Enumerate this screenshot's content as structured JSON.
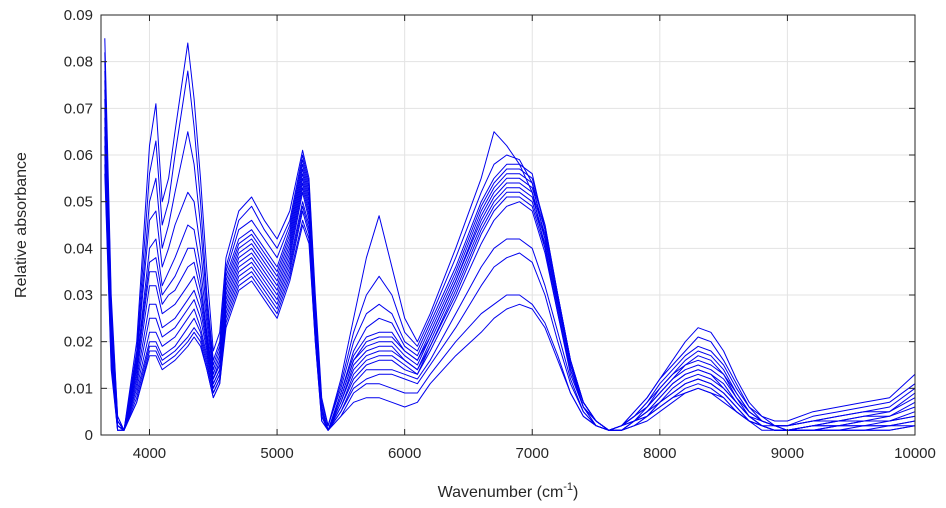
{
  "chart_data": {
    "type": "line",
    "title": "",
    "xlabel": "Wavenumber (cm",
    "xlabel_sup": "-1",
    "xlabel_tail": ")",
    "ylabel": "Relative absorbance",
    "xlim": [
      3620,
      10000
    ],
    "ylim": [
      0,
      0.09
    ],
    "x_ticks": [
      4000,
      5000,
      6000,
      7000,
      8000,
      9000,
      10000
    ],
    "y_ticks": [
      0,
      0.01,
      0.02,
      0.03,
      0.04,
      0.05,
      0.06,
      0.07,
      0.08,
      0.09
    ],
    "x_tick_labels": [
      "4000",
      "5000",
      "6000",
      "7000",
      "8000",
      "9000",
      "10000"
    ],
    "y_tick_labels": [
      "0",
      "0.01",
      "0.02",
      "0.03",
      "0.04",
      "0.05",
      "0.06",
      "0.07",
      "0.08",
      "0.09"
    ],
    "grid": true,
    "line_color": "#0000ee",
    "x": [
      3650,
      3700,
      3750,
      3800,
      3900,
      4000,
      4050,
      4100,
      4150,
      4200,
      4300,
      4350,
      4400,
      4450,
      4500,
      4550,
      4600,
      4700,
      4800,
      4900,
      5000,
      5100,
      5200,
      5250,
      5300,
      5350,
      5400,
      5500,
      5600,
      5700,
      5800,
      5900,
      6000,
      6100,
      6200,
      6400,
      6600,
      6700,
      6800,
      6900,
      7000,
      7100,
      7200,
      7300,
      7400,
      7500,
      7600,
      7700,
      7800,
      7900,
      8000,
      8100,
      8200,
      8300,
      8400,
      8500,
      8600,
      8700,
      8800,
      8900,
      9000,
      9200,
      9400,
      9600,
      9800,
      10000
    ],
    "series": [
      {
        "values": [
          0.085,
          0.03,
          0.004,
          0.001,
          0.02,
          0.062,
          0.071,
          0.05,
          0.055,
          0.065,
          0.084,
          0.072,
          0.055,
          0.035,
          0.018,
          0.022,
          0.038,
          0.048,
          0.051,
          0.046,
          0.042,
          0.048,
          0.061,
          0.055,
          0.03,
          0.008,
          0.002,
          0.012,
          0.025,
          0.038,
          0.047,
          0.036,
          0.025,
          0.02,
          0.026,
          0.04,
          0.055,
          0.065,
          0.062,
          0.058,
          0.052,
          0.04,
          0.028,
          0.015,
          0.007,
          0.003,
          0.001,
          0.002,
          0.005,
          0.008,
          0.012,
          0.016,
          0.02,
          0.023,
          0.022,
          0.018,
          0.012,
          0.007,
          0.004,
          0.003,
          0.003,
          0.005,
          0.006,
          0.007,
          0.008,
          0.013
        ]
      },
      {
        "values": [
          0.082,
          0.028,
          0.004,
          0.001,
          0.018,
          0.056,
          0.063,
          0.045,
          0.05,
          0.06,
          0.078,
          0.066,
          0.05,
          0.03,
          0.016,
          0.02,
          0.036,
          0.046,
          0.049,
          0.044,
          0.04,
          0.046,
          0.06,
          0.054,
          0.029,
          0.007,
          0.002,
          0.011,
          0.022,
          0.03,
          0.034,
          0.03,
          0.022,
          0.019,
          0.025,
          0.038,
          0.052,
          0.058,
          0.06,
          0.059,
          0.054,
          0.042,
          0.029,
          0.015,
          0.007,
          0.003,
          0.001,
          0.002,
          0.005,
          0.008,
          0.012,
          0.015,
          0.018,
          0.021,
          0.02,
          0.016,
          0.011,
          0.006,
          0.004,
          0.002,
          0.002,
          0.004,
          0.005,
          0.006,
          0.007,
          0.011
        ]
      },
      {
        "values": [
          0.08,
          0.026,
          0.003,
          0.001,
          0.017,
          0.05,
          0.055,
          0.04,
          0.045,
          0.052,
          0.065,
          0.058,
          0.045,
          0.028,
          0.015,
          0.019,
          0.035,
          0.044,
          0.046,
          0.042,
          0.038,
          0.045,
          0.059,
          0.053,
          0.028,
          0.007,
          0.002,
          0.01,
          0.02,
          0.026,
          0.028,
          0.026,
          0.02,
          0.018,
          0.024,
          0.036,
          0.05,
          0.055,
          0.058,
          0.058,
          0.056,
          0.044,
          0.03,
          0.016,
          0.007,
          0.003,
          0.001,
          0.002,
          0.004,
          0.007,
          0.011,
          0.014,
          0.017,
          0.019,
          0.018,
          0.015,
          0.01,
          0.006,
          0.003,
          0.002,
          0.002,
          0.003,
          0.004,
          0.005,
          0.006,
          0.01
        ]
      },
      {
        "values": [
          0.078,
          0.025,
          0.003,
          0.001,
          0.016,
          0.046,
          0.048,
          0.036,
          0.04,
          0.045,
          0.052,
          0.05,
          0.04,
          0.026,
          0.014,
          0.018,
          0.034,
          0.042,
          0.044,
          0.04,
          0.036,
          0.044,
          0.058,
          0.052,
          0.027,
          0.006,
          0.001,
          0.009,
          0.018,
          0.023,
          0.025,
          0.024,
          0.019,
          0.017,
          0.023,
          0.035,
          0.049,
          0.054,
          0.057,
          0.057,
          0.055,
          0.045,
          0.03,
          0.016,
          0.007,
          0.003,
          0.001,
          0.002,
          0.004,
          0.007,
          0.01,
          0.013,
          0.016,
          0.018,
          0.017,
          0.014,
          0.009,
          0.005,
          0.003,
          0.002,
          0.002,
          0.003,
          0.004,
          0.005,
          0.005,
          0.009
        ]
      },
      {
        "values": [
          0.076,
          0.024,
          0.003,
          0.001,
          0.015,
          0.04,
          0.042,
          0.032,
          0.035,
          0.038,
          0.045,
          0.044,
          0.036,
          0.024,
          0.013,
          0.017,
          0.033,
          0.041,
          0.043,
          0.039,
          0.035,
          0.043,
          0.057,
          0.051,
          0.026,
          0.006,
          0.001,
          0.009,
          0.017,
          0.021,
          0.022,
          0.022,
          0.018,
          0.016,
          0.022,
          0.034,
          0.048,
          0.053,
          0.056,
          0.056,
          0.054,
          0.045,
          0.03,
          0.016,
          0.007,
          0.003,
          0.001,
          0.002,
          0.004,
          0.006,
          0.01,
          0.013,
          0.015,
          0.017,
          0.016,
          0.013,
          0.009,
          0.005,
          0.003,
          0.002,
          0.002,
          0.003,
          0.003,
          0.004,
          0.005,
          0.008
        ]
      },
      {
        "values": [
          0.074,
          0.023,
          0.003,
          0.001,
          0.015,
          0.037,
          0.038,
          0.03,
          0.032,
          0.034,
          0.04,
          0.04,
          0.033,
          0.022,
          0.012,
          0.016,
          0.032,
          0.04,
          0.042,
          0.038,
          0.034,
          0.042,
          0.056,
          0.05,
          0.026,
          0.006,
          0.001,
          0.008,
          0.016,
          0.02,
          0.021,
          0.021,
          0.018,
          0.016,
          0.021,
          0.033,
          0.047,
          0.052,
          0.055,
          0.055,
          0.053,
          0.044,
          0.03,
          0.016,
          0.007,
          0.003,
          0.001,
          0.002,
          0.004,
          0.006,
          0.009,
          0.012,
          0.015,
          0.016,
          0.015,
          0.013,
          0.008,
          0.005,
          0.003,
          0.002,
          0.001,
          0.002,
          0.003,
          0.004,
          0.004,
          0.007
        ]
      },
      {
        "values": [
          0.072,
          0.022,
          0.002,
          0.001,
          0.014,
          0.035,
          0.035,
          0.028,
          0.03,
          0.031,
          0.036,
          0.037,
          0.031,
          0.021,
          0.012,
          0.015,
          0.031,
          0.039,
          0.041,
          0.037,
          0.033,
          0.041,
          0.055,
          0.049,
          0.025,
          0.005,
          0.001,
          0.008,
          0.016,
          0.019,
          0.02,
          0.02,
          0.017,
          0.015,
          0.021,
          0.033,
          0.046,
          0.051,
          0.054,
          0.054,
          0.052,
          0.043,
          0.029,
          0.015,
          0.007,
          0.003,
          0.001,
          0.002,
          0.003,
          0.006,
          0.009,
          0.012,
          0.014,
          0.015,
          0.014,
          0.012,
          0.008,
          0.004,
          0.003,
          0.002,
          0.001,
          0.002,
          0.003,
          0.003,
          0.004,
          0.006
        ]
      },
      {
        "values": [
          0.07,
          0.021,
          0.002,
          0.001,
          0.013,
          0.032,
          0.032,
          0.026,
          0.027,
          0.028,
          0.032,
          0.034,
          0.029,
          0.02,
          0.011,
          0.014,
          0.03,
          0.038,
          0.04,
          0.036,
          0.032,
          0.04,
          0.054,
          0.048,
          0.024,
          0.005,
          0.001,
          0.007,
          0.015,
          0.018,
          0.019,
          0.019,
          0.016,
          0.014,
          0.02,
          0.032,
          0.045,
          0.05,
          0.053,
          0.053,
          0.051,
          0.042,
          0.028,
          0.015,
          0.006,
          0.003,
          0.001,
          0.002,
          0.003,
          0.005,
          0.008,
          0.011,
          0.013,
          0.014,
          0.013,
          0.011,
          0.007,
          0.004,
          0.002,
          0.002,
          0.001,
          0.002,
          0.002,
          0.003,
          0.003,
          0.005
        ]
      },
      {
        "values": [
          0.068,
          0.02,
          0.002,
          0.001,
          0.012,
          0.028,
          0.028,
          0.023,
          0.024,
          0.025,
          0.029,
          0.031,
          0.027,
          0.019,
          0.011,
          0.014,
          0.029,
          0.037,
          0.039,
          0.035,
          0.031,
          0.039,
          0.053,
          0.047,
          0.024,
          0.005,
          0.001,
          0.007,
          0.014,
          0.017,
          0.018,
          0.018,
          0.016,
          0.014,
          0.019,
          0.031,
          0.044,
          0.049,
          0.052,
          0.052,
          0.05,
          0.041,
          0.027,
          0.014,
          0.006,
          0.003,
          0.001,
          0.002,
          0.003,
          0.005,
          0.008,
          0.011,
          0.013,
          0.014,
          0.013,
          0.01,
          0.007,
          0.004,
          0.002,
          0.001,
          0.001,
          0.002,
          0.002,
          0.003,
          0.003,
          0.004
        ]
      },
      {
        "values": [
          0.066,
          0.019,
          0.002,
          0.001,
          0.011,
          0.025,
          0.025,
          0.021,
          0.022,
          0.023,
          0.027,
          0.029,
          0.025,
          0.018,
          0.01,
          0.013,
          0.028,
          0.036,
          0.038,
          0.034,
          0.03,
          0.038,
          0.052,
          0.046,
          0.023,
          0.004,
          0.001,
          0.006,
          0.013,
          0.016,
          0.017,
          0.017,
          0.015,
          0.013,
          0.019,
          0.03,
          0.043,
          0.048,
          0.051,
          0.051,
          0.049,
          0.04,
          0.026,
          0.014,
          0.006,
          0.002,
          0.001,
          0.001,
          0.003,
          0.005,
          0.007,
          0.01,
          0.012,
          0.013,
          0.012,
          0.01,
          0.007,
          0.004,
          0.002,
          0.001,
          0.001,
          0.001,
          0.002,
          0.002,
          0.003,
          0.004
        ]
      },
      {
        "values": [
          0.064,
          0.018,
          0.002,
          0.001,
          0.01,
          0.022,
          0.022,
          0.019,
          0.02,
          0.021,
          0.025,
          0.027,
          0.023,
          0.017,
          0.01,
          0.013,
          0.027,
          0.035,
          0.037,
          0.033,
          0.029,
          0.037,
          0.05,
          0.045,
          0.022,
          0.004,
          0.001,
          0.006,
          0.012,
          0.015,
          0.016,
          0.016,
          0.014,
          0.013,
          0.018,
          0.029,
          0.041,
          0.046,
          0.049,
          0.05,
          0.048,
          0.039,
          0.026,
          0.013,
          0.006,
          0.002,
          0.001,
          0.001,
          0.003,
          0.004,
          0.007,
          0.009,
          0.011,
          0.012,
          0.011,
          0.009,
          0.006,
          0.003,
          0.002,
          0.001,
          0.001,
          0.001,
          0.002,
          0.002,
          0.002,
          0.003
        ]
      },
      {
        "values": [
          0.062,
          0.017,
          0.002,
          0.001,
          0.009,
          0.02,
          0.02,
          0.017,
          0.018,
          0.019,
          0.023,
          0.025,
          0.022,
          0.016,
          0.009,
          0.012,
          0.026,
          0.034,
          0.036,
          0.032,
          0.028,
          0.036,
          0.049,
          0.044,
          0.022,
          0.004,
          0.001,
          0.005,
          0.011,
          0.014,
          0.014,
          0.014,
          0.013,
          0.012,
          0.016,
          0.026,
          0.036,
          0.04,
          0.042,
          0.042,
          0.04,
          0.032,
          0.022,
          0.012,
          0.005,
          0.002,
          0.001,
          0.001,
          0.003,
          0.004,
          0.007,
          0.009,
          0.011,
          0.012,
          0.011,
          0.009,
          0.006,
          0.003,
          0.002,
          0.001,
          0.001,
          0.001,
          0.001,
          0.002,
          0.002,
          0.003
        ]
      },
      {
        "values": [
          0.06,
          0.016,
          0.001,
          0.001,
          0.008,
          0.019,
          0.019,
          0.016,
          0.017,
          0.018,
          0.021,
          0.023,
          0.021,
          0.015,
          0.009,
          0.012,
          0.025,
          0.033,
          0.035,
          0.031,
          0.027,
          0.035,
          0.048,
          0.043,
          0.021,
          0.004,
          0.001,
          0.005,
          0.01,
          0.012,
          0.013,
          0.013,
          0.012,
          0.011,
          0.015,
          0.023,
          0.032,
          0.036,
          0.038,
          0.039,
          0.037,
          0.03,
          0.02,
          0.011,
          0.005,
          0.002,
          0.001,
          0.001,
          0.002,
          0.004,
          0.006,
          0.008,
          0.01,
          0.011,
          0.01,
          0.008,
          0.005,
          0.003,
          0.002,
          0.001,
          0.001,
          0.001,
          0.001,
          0.001,
          0.002,
          0.002
        ]
      },
      {
        "values": [
          0.058,
          0.015,
          0.001,
          0.001,
          0.007,
          0.018,
          0.018,
          0.015,
          0.016,
          0.017,
          0.02,
          0.022,
          0.02,
          0.014,
          0.008,
          0.011,
          0.024,
          0.032,
          0.034,
          0.03,
          0.026,
          0.034,
          0.046,
          0.042,
          0.02,
          0.003,
          0.001,
          0.004,
          0.009,
          0.011,
          0.011,
          0.01,
          0.009,
          0.009,
          0.013,
          0.02,
          0.026,
          0.028,
          0.03,
          0.03,
          0.028,
          0.024,
          0.017,
          0.009,
          0.004,
          0.002,
          0.001,
          0.001,
          0.002,
          0.004,
          0.006,
          0.008,
          0.009,
          0.01,
          0.009,
          0.008,
          0.005,
          0.003,
          0.002,
          0.001,
          0.001,
          0.001,
          0.001,
          0.001,
          0.001,
          0.002
        ]
      },
      {
        "values": [
          0.056,
          0.014,
          0.001,
          0.001,
          0.007,
          0.017,
          0.017,
          0.014,
          0.015,
          0.016,
          0.019,
          0.021,
          0.019,
          0.014,
          0.008,
          0.011,
          0.023,
          0.031,
          0.033,
          0.029,
          0.025,
          0.033,
          0.045,
          0.041,
          0.02,
          0.003,
          0.001,
          0.004,
          0.007,
          0.008,
          0.008,
          0.007,
          0.006,
          0.007,
          0.011,
          0.017,
          0.022,
          0.025,
          0.027,
          0.028,
          0.027,
          0.023,
          0.016,
          0.009,
          0.004,
          0.002,
          0.001,
          0.001,
          0.002,
          0.003,
          0.005,
          0.007,
          0.009,
          0.01,
          0.009,
          0.007,
          0.005,
          0.003,
          0.001,
          0.001,
          0.001,
          0.001,
          0.001,
          0.001,
          0.001,
          0.002
        ]
      }
    ]
  }
}
